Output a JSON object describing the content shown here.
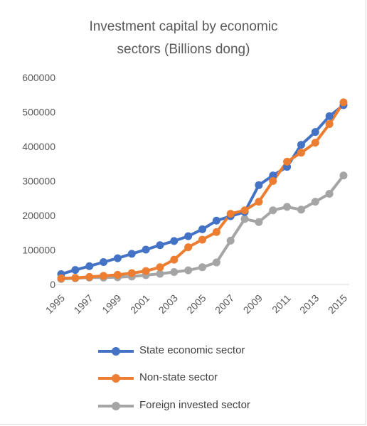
{
  "chart_data": {
    "type": "line",
    "title": "Investment capital by economic sectors (Billions dong)",
    "title_lines": [
      "Investment capital by economic",
      "sectors (Billions dong)"
    ],
    "xlabel": "",
    "ylabel": "",
    "ylim": [
      0,
      600000
    ],
    "yticks": [
      0,
      100000,
      200000,
      300000,
      400000,
      500000,
      600000
    ],
    "ytick_labels": [
      "0",
      "100000",
      "200000",
      "300000",
      "400000",
      "500000",
      "600000"
    ],
    "x": [
      1995,
      1996,
      1997,
      1998,
      1999,
      2000,
      2001,
      2002,
      2003,
      2004,
      2005,
      2006,
      2007,
      2008,
      2009,
      2010,
      2011,
      2012,
      2013,
      2014,
      2015
    ],
    "xtick_labels": [
      "1995",
      "1997",
      "1999",
      "2001",
      "2003",
      "2005",
      "2007",
      "2009",
      "2011",
      "2013",
      "2015"
    ],
    "xtick_values": [
      1995,
      1997,
      1999,
      2001,
      2003,
      2005,
      2007,
      2009,
      2011,
      2013,
      2015
    ],
    "grid": false,
    "legend_position": "bottom",
    "series": [
      {
        "name": "State economic sector",
        "color": "#4472C4",
        "values": [
          30000,
          42000,
          53000,
          65000,
          76000,
          89000,
          101000,
          114000,
          126000,
          140000,
          160000,
          185000,
          198000,
          210000,
          288000,
          316000,
          341000,
          405000,
          442000,
          488000,
          520000
        ]
      },
      {
        "name": "Non-state sector",
        "color": "#ED7D31",
        "values": [
          18000,
          19000,
          22000,
          25000,
          28000,
          33000,
          39000,
          50000,
          72000,
          108000,
          130000,
          152000,
          205000,
          215000,
          240000,
          300000,
          356000,
          382000,
          411000,
          465000,
          528000
        ]
      },
      {
        "name": "Foreign invested sector",
        "color": "#A5A5A5",
        "values": [
          16000,
          18000,
          20000,
          20000,
          21000,
          23000,
          27000,
          31000,
          36000,
          41000,
          50000,
          64000,
          127000,
          190000,
          181000,
          215000,
          225000,
          217000,
          240000,
          263000,
          316000
        ]
      }
    ]
  }
}
